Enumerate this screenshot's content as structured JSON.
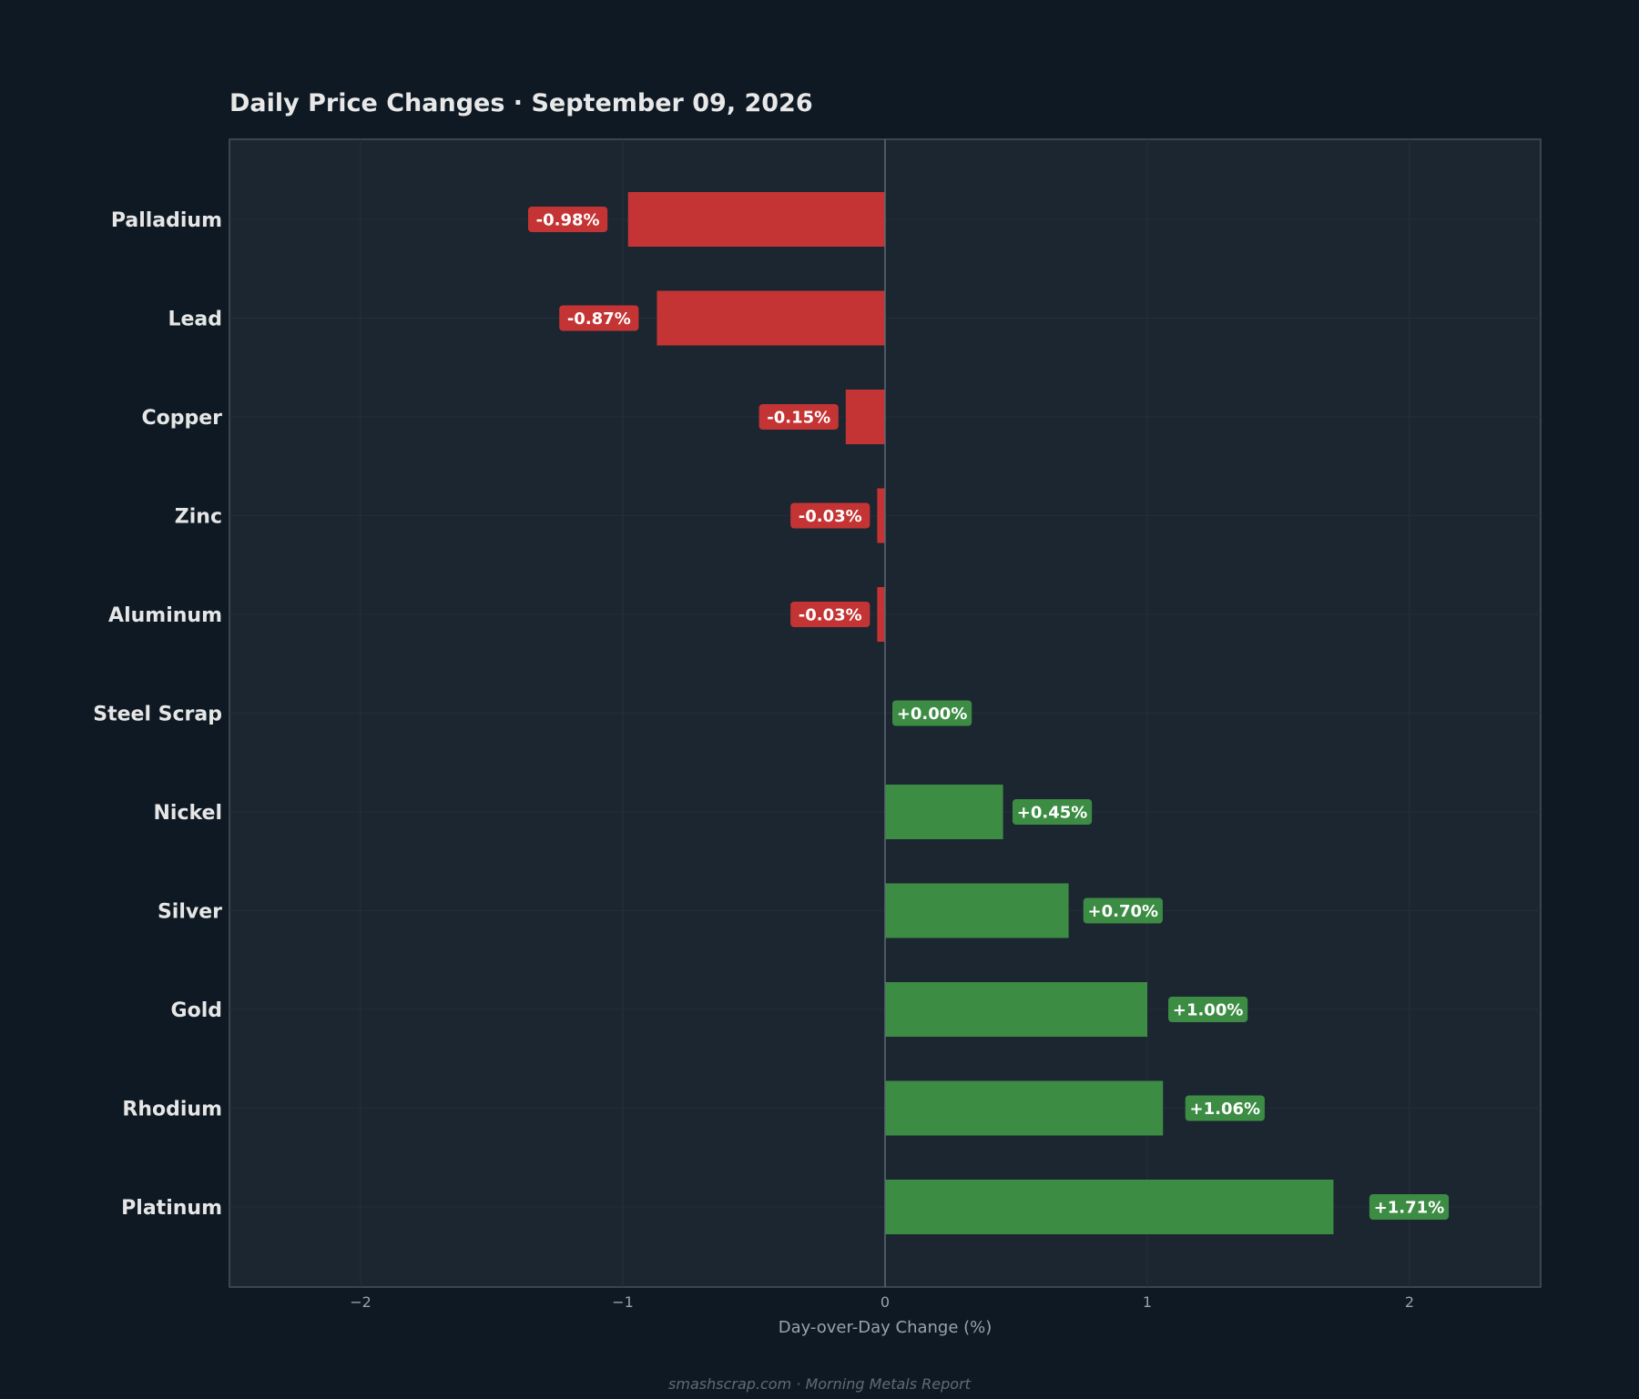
{
  "chart_data": {
    "type": "bar",
    "orientation": "horizontal",
    "title": "Daily Price Changes  ·  September 09, 2026",
    "xlabel": "Day-over-Day Change (%)",
    "ylabel": "",
    "xlim": [
      -2.5,
      2.5
    ],
    "x_ticks": [
      -2,
      -1,
      0,
      1,
      2
    ],
    "x_tick_labels": [
      "−2",
      "−1",
      "0",
      "1",
      "2"
    ],
    "grid": true,
    "categories": [
      "Palladium",
      "Lead",
      "Copper",
      "Zinc",
      "Aluminum",
      "Steel Scrap",
      "Nickel",
      "Silver",
      "Gold",
      "Rhodium",
      "Platinum"
    ],
    "values": [
      -0.98,
      -0.87,
      -0.15,
      -0.03,
      -0.03,
      0.0,
      0.45,
      0.7,
      1.0,
      1.06,
      1.71
    ],
    "value_labels": [
      "-0.98%",
      "-0.87%",
      "-0.15%",
      "-0.03%",
      "-0.03%",
      "+0.00%",
      "+0.45%",
      "+0.70%",
      "+1.00%",
      "+1.06%",
      "+1.71%"
    ],
    "colors": {
      "negative": "#c53434",
      "positive": "#3c8c44",
      "page_background": "#0e1923",
      "plot_background": "#1b2631"
    }
  },
  "footer": "smashscrap.com  ·  Morning Metals Report"
}
